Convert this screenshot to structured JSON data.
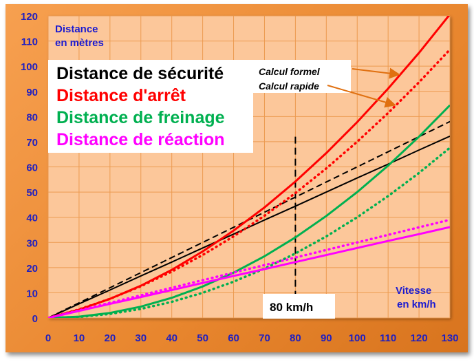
{
  "chart_data": {
    "type": "line",
    "ylabel": "Distance en mètres",
    "ylabel_lines": [
      "Distance",
      "en mètres"
    ],
    "xlabel": "Vitesse en km/h",
    "xlabel_lines": [
      "Vitesse",
      "en km/h"
    ],
    "xlim": [
      0,
      130
    ],
    "ylim": [
      0,
      120
    ],
    "xticks": [
      0,
      10,
      20,
      30,
      40,
      50,
      60,
      70,
      80,
      90,
      100,
      110,
      120,
      130
    ],
    "yticks": [
      0,
      10,
      20,
      30,
      40,
      50,
      60,
      70,
      80,
      90,
      100,
      110,
      120
    ],
    "grid": true,
    "x": [
      0,
      10,
      20,
      30,
      40,
      50,
      60,
      70,
      80,
      90,
      100,
      110,
      120,
      130
    ],
    "legend": [
      {
        "label": "Distance de sécurité",
        "color": "#000000"
      },
      {
        "label": "Distance d'arrêt",
        "color": "#ff0000"
      },
      {
        "label": "Distance de freinage",
        "color": "#00b050"
      },
      {
        "label": "Distance de réaction",
        "color": "#ff00ff"
      }
    ],
    "line_styles": {
      "formal": "Calcul formel",
      "quick": "Calcul rapide"
    },
    "series": [
      {
        "name": "Distance de sécurité - Calcul formel",
        "color": "#000000",
        "style": "solid",
        "values": [
          0,
          5.6,
          11.1,
          16.7,
          22.2,
          27.8,
          33.3,
          38.9,
          44.4,
          50,
          55.6,
          61.1,
          66.7,
          72.2
        ]
      },
      {
        "name": "Distance de sécurité - Calcul rapide",
        "color": "#000000",
        "style": "dashed",
        "values": [
          0,
          6,
          12,
          18,
          24,
          30,
          36,
          42,
          48,
          54,
          60,
          66,
          72,
          78
        ]
      },
      {
        "name": "Distance d'arrêt - Calcul formel",
        "color": "#ff0000",
        "style": "solid",
        "values": [
          0,
          3.3,
          7.6,
          12.8,
          19.1,
          26.4,
          34.7,
          43.9,
          54.2,
          65.5,
          77.8,
          91.1,
          105.3,
          120.6
        ]
      },
      {
        "name": "Distance d'arrêt - Calcul rapide",
        "color": "#ff0000",
        "style": "dotted",
        "values": [
          0,
          3.4,
          7.6,
          12.6,
          18.4,
          25,
          32.4,
          40.6,
          49.6,
          59.4,
          70,
          81.4,
          93.6,
          106.6
        ]
      },
      {
        "name": "Distance de freinage - Calcul formel",
        "color": "#00b050",
        "style": "solid",
        "values": [
          0,
          0.5,
          2,
          4.5,
          8,
          12.5,
          18,
          24.5,
          32,
          40.5,
          50,
          60.5,
          72,
          84.5
        ]
      },
      {
        "name": "Distance de freinage - Calcul rapide",
        "color": "#00b050",
        "style": "dotted",
        "values": [
          0,
          0.4,
          1.6,
          3.6,
          6.4,
          10,
          14.4,
          19.6,
          25.6,
          32.4,
          40,
          48.4,
          57.6,
          67.6
        ]
      },
      {
        "name": "Distance de réaction - Calcul formel",
        "color": "#ff00ff",
        "style": "solid",
        "values": [
          0,
          2.8,
          5.6,
          8.3,
          11.1,
          13.9,
          16.7,
          19.4,
          22.2,
          25,
          27.8,
          30.6,
          33.3,
          36.1
        ]
      },
      {
        "name": "Distance de réaction - Calcul rapide",
        "color": "#ff00ff",
        "style": "dotted",
        "values": [
          0,
          3,
          6,
          9,
          12,
          15,
          18,
          21,
          24,
          27,
          30,
          33,
          36,
          39
        ]
      }
    ],
    "annotations": {
      "marker_x": 80,
      "marker_top": 72,
      "marker_label": "80 km/h"
    }
  }
}
